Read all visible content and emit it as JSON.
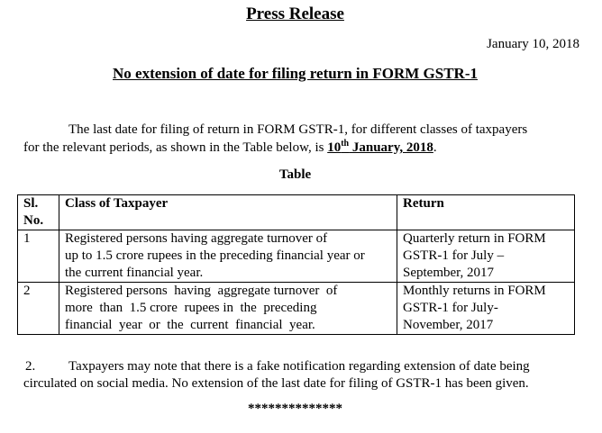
{
  "title": "Press Release",
  "date": "January 10, 2018",
  "heading": "No extension of date for filing return in FORM GSTR-1",
  "para1": {
    "line1": "The last date for filing of return in FORM GSTR-1, for different classes of taxpayers",
    "line2_prefix": "for the relevant periods, as shown in the Table below, is ",
    "date_day": "10",
    "date_sup": "th",
    "date_rest": " January, 2018",
    "suffix": "."
  },
  "table": {
    "caption": "Table",
    "headers": [
      "Sl. No.",
      "Class of Taxpayer",
      "Return"
    ],
    "rows": [
      {
        "sl": "1",
        "class_lines": [
          "Registered  persons having aggregate turnover of",
          "up to 1.5 crore rupees in the preceding financial year or",
          "the current financial year."
        ],
        "return_lines": [
          "Quarterly return in FORM",
          "GSTR-1 for July –",
          "September, 2017"
        ]
      },
      {
        "sl": "2",
        "class_lines": [
          "Registered persons  having  aggregate turnover  of",
          "more  than  1.5 crore  rupees in  the  preceding",
          "financial  year  or  the  current  financial  year."
        ],
        "return_lines": [
          "Monthly returns in FORM",
          "GSTR-1 for July-",
          "November, 2017"
        ]
      }
    ]
  },
  "para2": {
    "number": "2.",
    "line1": "Taxpayers may note that there is a fake notification regarding extension of date being",
    "line2": "circulated on social media. No extension of the last date for filing of GSTR-1 has been given."
  },
  "end_mark": "**************"
}
